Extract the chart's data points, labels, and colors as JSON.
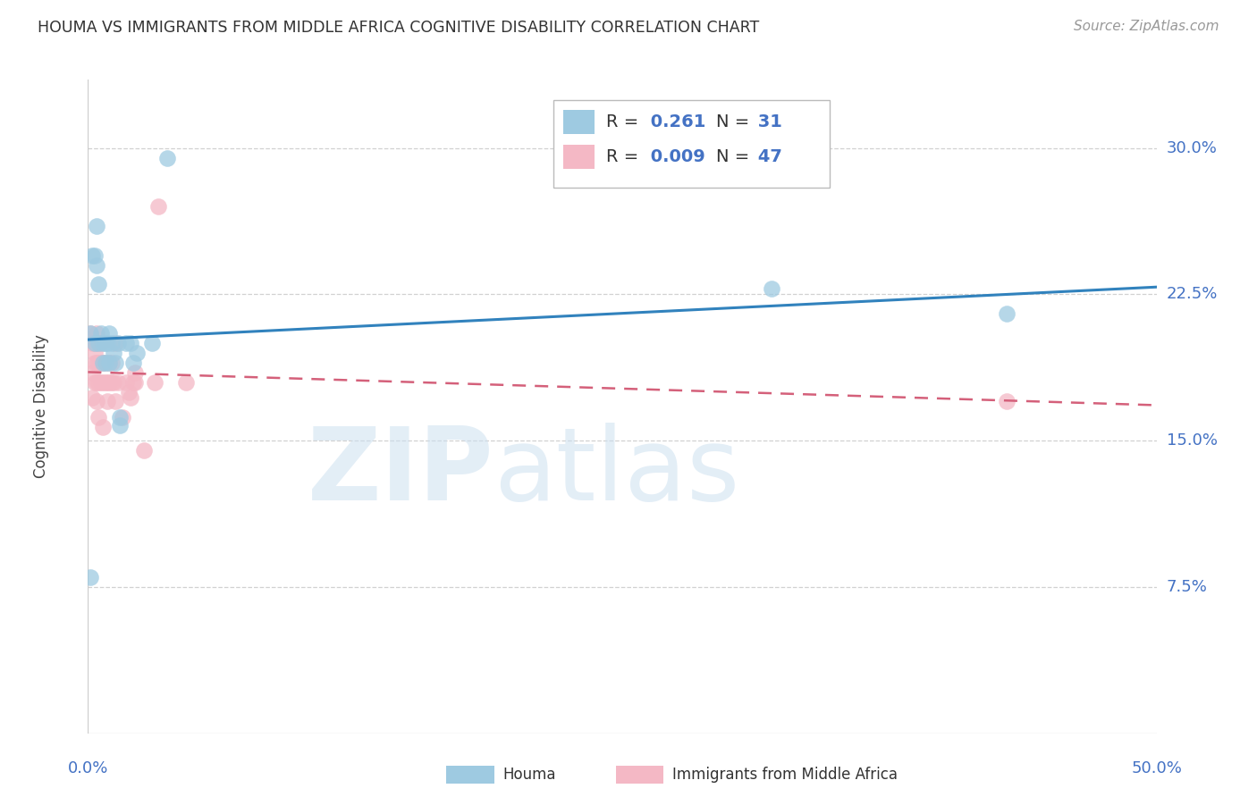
{
  "title": "HOUMA VS IMMIGRANTS FROM MIDDLE AFRICA COGNITIVE DISABILITY CORRELATION CHART",
  "source": "Source: ZipAtlas.com",
  "ylabel": "Cognitive Disability",
  "ytick_labels": [
    "7.5%",
    "15.0%",
    "22.5%",
    "30.0%"
  ],
  "ytick_values": [
    0.075,
    0.15,
    0.225,
    0.3
  ],
  "xlim": [
    0.0,
    0.5
  ],
  "ylim": [
    0.0,
    0.335
  ],
  "houma_R": "0.261",
  "houma_N": "31",
  "imm_R": "0.009",
  "imm_N": "47",
  "houma_points": [
    [
      0.001,
      0.205
    ],
    [
      0.002,
      0.245
    ],
    [
      0.003,
      0.2
    ],
    [
      0.003,
      0.245
    ],
    [
      0.004,
      0.26
    ],
    [
      0.004,
      0.24
    ],
    [
      0.005,
      0.23
    ],
    [
      0.005,
      0.2
    ],
    [
      0.006,
      0.205
    ],
    [
      0.007,
      0.19
    ],
    [
      0.007,
      0.2
    ],
    [
      0.008,
      0.19
    ],
    [
      0.008,
      0.2
    ],
    [
      0.009,
      0.2
    ],
    [
      0.01,
      0.19
    ],
    [
      0.01,
      0.205
    ],
    [
      0.011,
      0.2
    ],
    [
      0.012,
      0.195
    ],
    [
      0.013,
      0.19
    ],
    [
      0.014,
      0.2
    ],
    [
      0.015,
      0.158
    ],
    [
      0.015,
      0.162
    ],
    [
      0.018,
      0.2
    ],
    [
      0.02,
      0.2
    ],
    [
      0.021,
      0.19
    ],
    [
      0.023,
      0.195
    ],
    [
      0.03,
      0.2
    ],
    [
      0.037,
      0.295
    ],
    [
      0.001,
      0.08
    ],
    [
      0.32,
      0.228
    ],
    [
      0.43,
      0.215
    ]
  ],
  "immigrant_points": [
    [
      0.001,
      0.205
    ],
    [
      0.002,
      0.2
    ],
    [
      0.002,
      0.185
    ],
    [
      0.002,
      0.172
    ],
    [
      0.003,
      0.2
    ],
    [
      0.003,
      0.195
    ],
    [
      0.003,
      0.19
    ],
    [
      0.003,
      0.18
    ],
    [
      0.004,
      0.205
    ],
    [
      0.004,
      0.2
    ],
    [
      0.004,
      0.19
    ],
    [
      0.004,
      0.18
    ],
    [
      0.004,
      0.17
    ],
    [
      0.005,
      0.2
    ],
    [
      0.005,
      0.19
    ],
    [
      0.005,
      0.18
    ],
    [
      0.005,
      0.162
    ],
    [
      0.006,
      0.2
    ],
    [
      0.006,
      0.19
    ],
    [
      0.006,
      0.18
    ],
    [
      0.007,
      0.19
    ],
    [
      0.007,
      0.18
    ],
    [
      0.007,
      0.157
    ],
    [
      0.008,
      0.19
    ],
    [
      0.008,
      0.18
    ],
    [
      0.009,
      0.18
    ],
    [
      0.009,
      0.17
    ],
    [
      0.01,
      0.19
    ],
    [
      0.01,
      0.18
    ],
    [
      0.011,
      0.19
    ],
    [
      0.011,
      0.18
    ],
    [
      0.012,
      0.18
    ],
    [
      0.013,
      0.17
    ],
    [
      0.013,
      0.2
    ],
    [
      0.014,
      0.18
    ],
    [
      0.016,
      0.162
    ],
    [
      0.018,
      0.18
    ],
    [
      0.019,
      0.175
    ],
    [
      0.02,
      0.172
    ],
    [
      0.021,
      0.18
    ],
    [
      0.022,
      0.18
    ],
    [
      0.026,
      0.145
    ],
    [
      0.031,
      0.18
    ],
    [
      0.033,
      0.27
    ],
    [
      0.046,
      0.18
    ],
    [
      0.022,
      0.185
    ],
    [
      0.43,
      0.17
    ]
  ],
  "houma_line_color": "#3182bd",
  "immigrant_line_color": "#d4607a",
  "dot_blue": "#9ecae1",
  "dot_pink": "#f4b8c5",
  "background_color": "#ffffff",
  "grid_color": "#cccccc",
  "axis_color": "#4472c4",
  "title_color": "#333333",
  "source_color": "#999999",
  "legend_text_color": "#333333",
  "legend_R_color": "#4472c4",
  "legend_N_color": "#333333"
}
